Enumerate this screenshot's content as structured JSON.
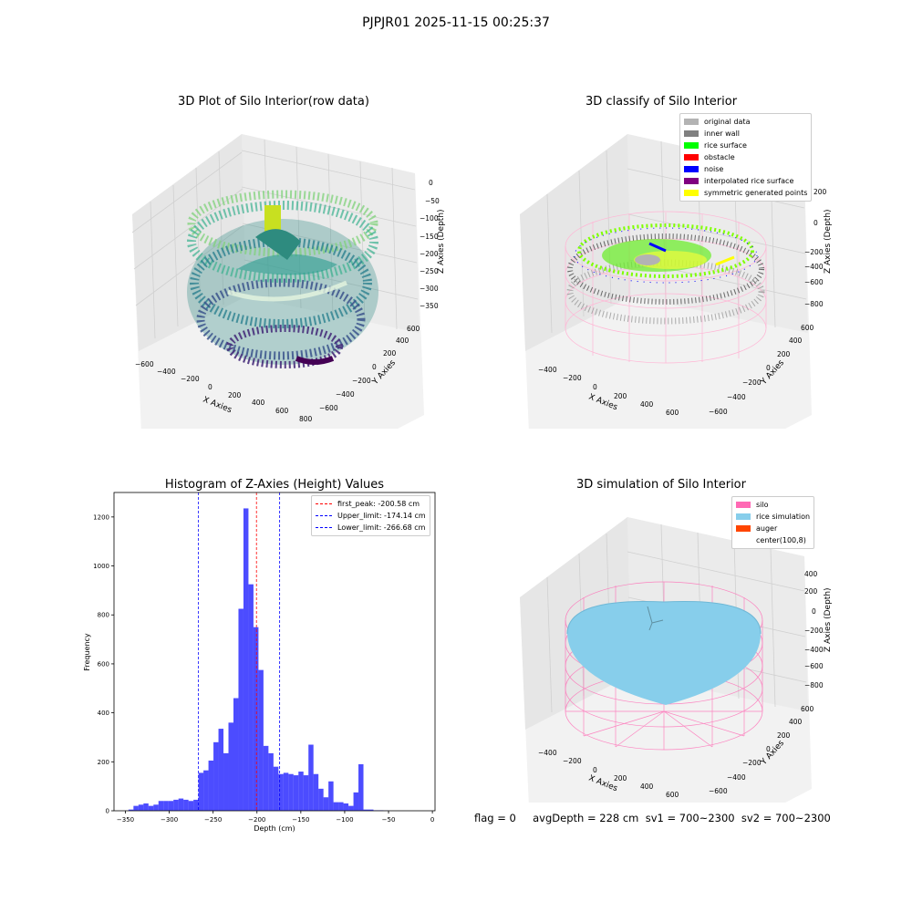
{
  "suptitle": "PJPJR01 2025-11-15 00:25:37",
  "footer": "flag = 0     avgDepth = 228 cm  sv1 = 700~2300  sv2 = 700~2300",
  "panels": {
    "raw": {
      "title": "3D Plot of Silo Interior(row data)",
      "xlabel": "X Axies",
      "ylabel": "Y Axies",
      "zlabel": "Z Axies (Depth)",
      "xticks": [
        "−600",
        "−400",
        "−200",
        "0",
        "200",
        "400",
        "600",
        "800"
      ],
      "yticks": [
        "−600",
        "−400",
        "−200",
        "0",
        "200",
        "400",
        "600"
      ],
      "zticks": [
        "0",
        "−50",
        "−100",
        "−150",
        "−200",
        "−250",
        "−300",
        "−350"
      ]
    },
    "classify": {
      "title": "3D classify of Silo Interior",
      "xlabel": "X Axies",
      "ylabel": "Y Axies",
      "zlabel": "Z Axies (Depth)",
      "xticks": [
        "−400",
        "−200",
        "0",
        "200",
        "400",
        "600"
      ],
      "yticks": [
        "−600",
        "−400",
        "−200",
        "0",
        "200",
        "400",
        "600"
      ],
      "zticks": [
        "200",
        "0",
        "−200",
        "−400",
        "−600",
        "−800"
      ],
      "legend": [
        {
          "label": "original data",
          "color": "#b3b3b3"
        },
        {
          "label": "inner wall",
          "color": "#808080"
        },
        {
          "label": "rice surface",
          "color": "#00ff00"
        },
        {
          "label": "obstacle",
          "color": "#ff0000"
        },
        {
          "label": "noise",
          "color": "#0000ff"
        },
        {
          "label": "interpolated rice surface",
          "color": "#800080"
        },
        {
          "label": "symmetric generated points",
          "color": "#ffff00"
        }
      ]
    },
    "sim": {
      "title": "3D simulation of Silo Interior",
      "xlabel": "X Axies",
      "ylabel": "Y Axies",
      "zlabel": "Z Axies (Depth)",
      "xticks": [
        "−400",
        "−200",
        "0",
        "200",
        "400",
        "600"
      ],
      "yticks": [
        "−600",
        "−400",
        "−200",
        "0",
        "200",
        "400",
        "600"
      ],
      "zticks": [
        "400",
        "200",
        "0",
        "−200",
        "−400",
        "−600",
        "−800"
      ],
      "legend": [
        {
          "label": "silo",
          "color": "#ff69b4"
        },
        {
          "label": "rice simulation",
          "color": "#87ceeb"
        },
        {
          "label": "auger",
          "color": "#ff4500"
        },
        {
          "label": "center(100,8)",
          "color": ""
        }
      ]
    }
  },
  "chart_data": {
    "type": "bar",
    "title": "Histogram of Z-Axies (Height) Values",
    "xlabel": "Depth (cm)",
    "ylabel": "Frequency",
    "xlim": [
      -363,
      3
    ],
    "ylim": [
      0,
      1300
    ],
    "xticks": [
      -350,
      -300,
      -250,
      -200,
      -150,
      -100,
      -50,
      0
    ],
    "yticks": [
      0,
      200,
      400,
      600,
      800,
      1000,
      1200
    ],
    "bar_color": "#0000ff",
    "bin_edges": [
      -346.5,
      -340.8,
      -335.1,
      -329.4,
      -323.7,
      -318,
      -312.3,
      -306.6,
      -300.9,
      -295.2,
      -289.5,
      -283.8,
      -278.1,
      -272.4,
      -266.7,
      -261,
      -255.3,
      -249.6,
      -243.9,
      -238.2,
      -232.5,
      -226.8,
      -221.1,
      -215.4,
      -209.7,
      -204,
      -198.3,
      -192.6,
      -186.9,
      -181.2,
      -175.5,
      -169.8,
      -164.1,
      -158.4,
      -152.7,
      -147,
      -141.3,
      -135.6,
      -129.9,
      -124.2,
      -118.5,
      -112.8,
      -107.1,
      -101.4,
      -95.7,
      -90,
      -84.3,
      -78.6,
      -72.9,
      -67.2,
      -61.5,
      -55.8,
      -50.1,
      -44.4,
      -38.7,
      -33,
      -27.3,
      -21.6,
      -15.9
    ],
    "values": [
      5,
      20,
      25,
      30,
      20,
      25,
      40,
      40,
      40,
      45,
      50,
      45,
      40,
      45,
      155,
      165,
      205,
      280,
      335,
      235,
      360,
      460,
      825,
      1235,
      925,
      750,
      575,
      265,
      235,
      180,
      150,
      155,
      150,
      145,
      160,
      145,
      270,
      150,
      90,
      55,
      120,
      35,
      35,
      30,
      20,
      75,
      190,
      5,
      5,
      2,
      2,
      1,
      0,
      0,
      0,
      0,
      0,
      0
    ],
    "vlines": [
      {
        "x": -200.58,
        "color": "#ff0000",
        "label": "first_peak: -200.58 cm"
      },
      {
        "x": -174.14,
        "color": "#0000ff",
        "label": "Upper_limit: -174.14 cm"
      },
      {
        "x": -266.68,
        "color": "#0000ff",
        "label": "Lower_limit: -266.68 cm"
      }
    ],
    "legend_position": "top-right"
  }
}
